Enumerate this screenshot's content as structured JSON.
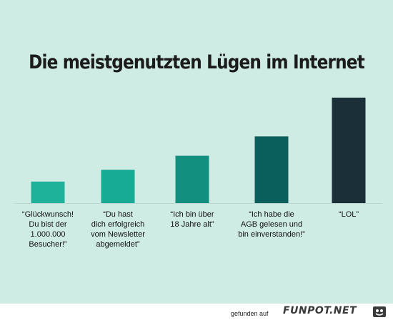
{
  "title": "Die meistgenutzten Lügen im Internet",
  "chart_data": {
    "type": "bar",
    "title": "Die meistgenutzten Lügen im Internet",
    "categories": [
      [
        "“Glückwunsch!",
        "Du bist der",
        "1.000.000",
        "Besucher!”"
      ],
      [
        "“Du hast",
        "dich erfolgreich",
        "vom Newsletter",
        "abgemeldet”"
      ],
      [
        "“Ich bin über",
        "18 Jahre alt”"
      ],
      [
        "“Ich habe die",
        "AGB gelesen und",
        "bin einverstanden!”"
      ],
      [
        "“LOL”"
      ]
    ],
    "values": [
      1,
      1.55,
      2.2,
      3.1,
      4.9
    ],
    "ylim": [
      0,
      4.9
    ],
    "colors": [
      "#1fb29a",
      "#17aa94",
      "#138f80",
      "#0a5f5c",
      "#1a2f38"
    ],
    "grid": false,
    "xlabel": "",
    "ylabel": ""
  },
  "footer": {
    "found_on": "gefunden auf",
    "brand": "FUNPOT.NET"
  }
}
